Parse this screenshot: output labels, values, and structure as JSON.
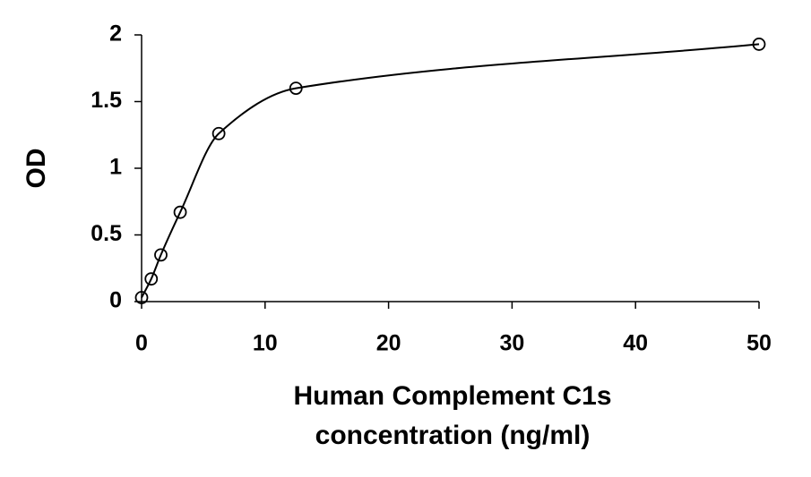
{
  "chart_data": {
    "type": "scatter",
    "xlabel": [
      "Human Complement C1s",
      "concentration (ng/ml)"
    ],
    "ylabel": "OD",
    "x": [
      0,
      0.78,
      1.56,
      3.125,
      6.25,
      12.5,
      50
    ],
    "series": [
      {
        "values": [
          0.03,
          0.17,
          0.35,
          0.67,
          1.26,
          1.6,
          1.93
        ],
        "color": "#000000"
      }
    ],
    "xlim": [
      0,
      50
    ],
    "xticks": [
      0,
      10,
      20,
      30,
      40,
      50
    ],
    "ylim": [
      0,
      2
    ],
    "yticks": [
      0,
      0.5,
      1,
      1.5,
      2
    ],
    "fit_line": true,
    "grid": false
  }
}
